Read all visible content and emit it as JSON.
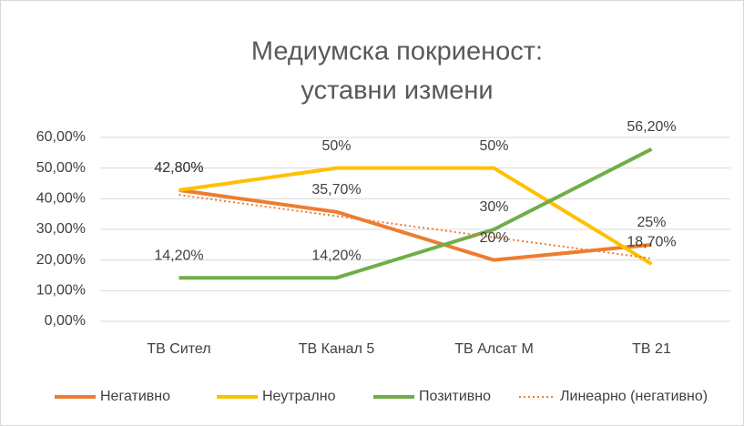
{
  "chart_data": {
    "type": "line",
    "title": [
      "Медиумска покриеност:",
      "уставни измени"
    ],
    "categories": [
      "ТВ Сител",
      "ТВ Канал 5",
      "ТВ Алсат М",
      "ТВ 21"
    ],
    "series": [
      {
        "name": "Негативно",
        "color": "#ed7d31",
        "values": [
          42.8,
          35.7,
          20,
          25
        ],
        "value_labels": [
          "42,80%",
          "35,70%",
          "20%",
          "25%"
        ]
      },
      {
        "name": "Неутрално",
        "color": "#ffc000",
        "values": [
          42.8,
          50,
          50,
          18.7
        ],
        "value_labels": [
          "42,80%",
          "50%",
          "50%",
          "18,70%"
        ]
      },
      {
        "name": "Позитивно",
        "color": "#70ad47",
        "values": [
          14.2,
          14.2,
          30,
          56.2
        ],
        "value_labels": [
          "14,20%",
          "14,20%",
          "30%",
          "56,20%"
        ]
      },
      {
        "name": "Линеарно (негативно)",
        "color": "#ed7d31",
        "style": "dotted",
        "values": [
          41.24,
          34.33,
          27.42,
          20.51
        ]
      }
    ],
    "ylim": [
      0,
      60
    ],
    "yticks": [
      {
        "value": 0,
        "label": "0,00%"
      },
      {
        "value": 10,
        "label": "10,00%"
      },
      {
        "value": 20,
        "label": "20,00%"
      },
      {
        "value": 30,
        "label": "30,00%"
      },
      {
        "value": 40,
        "label": "40,00%"
      },
      {
        "value": 50,
        "label": "50,00%"
      },
      {
        "value": 60,
        "label": "60,00%"
      }
    ],
    "grid": true,
    "legend": "bottom"
  }
}
